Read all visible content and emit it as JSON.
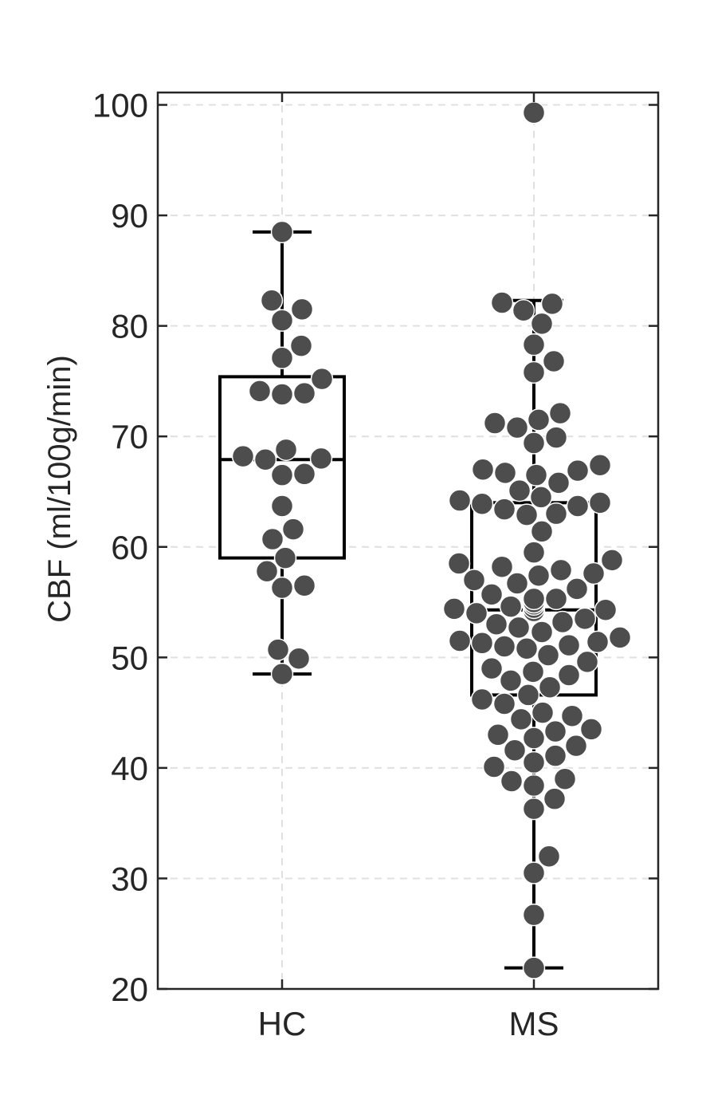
{
  "chart_data": {
    "type": "box",
    "ylabel": "CBF (ml/100g/min)",
    "xlabel": "",
    "title": "",
    "categories": [
      "HC",
      "MS"
    ],
    "ylim": [
      20,
      100
    ],
    "yticks": [
      "20",
      "30",
      "40",
      "50",
      "60",
      "70",
      "80",
      "90",
      "100"
    ],
    "grid": true,
    "boxes": [
      {
        "category": "HC",
        "whisker_low": 48.5,
        "q1": 59.0,
        "median": 67.9,
        "q3": 75.4,
        "whisker_high": 88.5
      },
      {
        "category": "MS",
        "whisker_low": 21.9,
        "q1": 46.6,
        "median": 54.3,
        "q3": 64.0,
        "whisker_high": 82.3
      }
    ],
    "points": [
      {
        "category": "HC",
        "values": [
          88.5,
          82.3,
          81.5,
          80.5,
          78.2,
          77.1,
          75.2,
          74.1,
          73.9,
          73.8,
          68.8,
          68.2,
          68.0,
          67.9,
          66.6,
          66.5,
          63.7,
          61.6,
          60.7,
          59.0,
          57.8,
          56.5,
          56.3,
          50.7,
          49.9,
          48.5
        ]
      },
      {
        "category": "MS",
        "values": [
          99.3,
          82.1,
          82.0,
          81.4,
          80.2,
          78.3,
          76.8,
          75.8,
          72.1,
          71.5,
          71.2,
          70.8,
          69.9,
          69.4,
          67.4,
          67.0,
          66.9,
          66.7,
          66.5,
          65.8,
          65.1,
          64.5,
          64.2,
          64.0,
          63.9,
          63.7,
          63.4,
          63.0,
          62.9,
          61.4,
          59.5,
          58.8,
          58.5,
          58.2,
          57.9,
          57.6,
          57.4,
          57.0,
          56.7,
          56.2,
          55.7,
          55.3,
          55.3,
          55.0,
          54.8,
          54.6,
          54.5,
          54.4,
          54.3,
          54.2,
          54.0,
          53.5,
          53.2,
          53.0,
          52.7,
          52.3,
          51.8,
          51.5,
          51.4,
          51.3,
          51.1,
          51.0,
          50.8,
          50.2,
          49.6,
          49.0,
          48.7,
          48.4,
          47.9,
          47.3,
          46.6,
          46.2,
          45.8,
          45.0,
          44.7,
          44.4,
          43.5,
          43.3,
          43.0,
          42.7,
          42.0,
          41.6,
          41.1,
          40.5,
          40.1,
          39.0,
          38.8,
          38.4,
          37.2,
          36.3,
          32.0,
          30.5,
          26.7,
          21.9
        ]
      }
    ],
    "colors": {
      "point": "#4d4d4d",
      "point_edge": "#ffffff",
      "box": "#000000",
      "grid": "#e0e0e0",
      "axis": "#262626"
    }
  }
}
